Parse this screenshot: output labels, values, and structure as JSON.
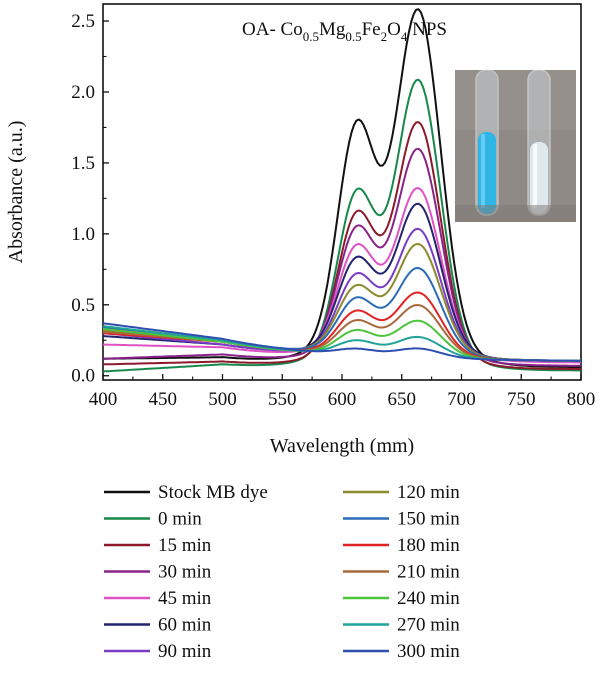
{
  "chart_data": {
    "type": "line",
    "title": {
      "prefix": "OA- Co",
      "co_sub": "0.5",
      "mg": "Mg",
      "mg_sub": "0.5",
      "fe": "Fe",
      "fe_sub": "2",
      "o": "O",
      "o_sub": "4",
      "suffix": " NPS"
    },
    "xlabel": "Wavelength (mm)",
    "ylabel": "Absorbance (a.u.)",
    "xlim": [
      400,
      800
    ],
    "ylim": [
      -0.03,
      2.62
    ],
    "x_ticks": [
      "400",
      "450",
      "500",
      "550",
      "600",
      "650",
      "700",
      "750",
      "800"
    ],
    "y_ticks": [
      "0.0",
      "0.5",
      "1.0",
      "1.5",
      "2.0",
      "2.5"
    ],
    "grid": false,
    "legend_position": "bottom",
    "inset": "photo of two test tubes: blue dye solution (left) and clear treated solution (right)",
    "inset_colors": {
      "background": "#8f8a86",
      "blue_liquid": "#2fb6e6",
      "clear_liquid": "#dfe8ec"
    },
    "series": [
      {
        "name": "Stock MB dye",
        "color": "#111111",
        "base400": 0.12,
        "base500": 0.13,
        "peak": 2.34,
        "shoulder": 1.57
      },
      {
        "name": "0 min",
        "color": "#16884a",
        "base400": 0.03,
        "base500": 0.08,
        "peak": 1.89,
        "shoulder": 1.13
      },
      {
        "name": "15 min",
        "color": "#8b1a2b",
        "base400": 0.08,
        "base500": 0.1,
        "peak": 1.62,
        "shoulder": 1.0
      },
      {
        "name": "30 min",
        "color": "#8a2389",
        "base400": 0.12,
        "base500": 0.15,
        "peak": 1.45,
        "shoulder": 0.91
      },
      {
        "name": "45 min",
        "color": "#e052c4",
        "base400": 0.22,
        "base500": 0.2,
        "peak": 1.2,
        "shoulder": 0.8
      },
      {
        "name": "60 min",
        "color": "#24236e",
        "base400": 0.28,
        "base500": 0.22,
        "peak": 1.1,
        "shoulder": 0.72
      },
      {
        "name": "90 min",
        "color": "#7a3cc4",
        "base400": 0.3,
        "base500": 0.22,
        "peak": 0.94,
        "shoulder": 0.62
      },
      {
        "name": "120 min",
        "color": "#8c8a2c",
        "base400": 0.32,
        "base500": 0.24,
        "peak": 0.85,
        "shoulder": 0.55
      },
      {
        "name": "150 min",
        "color": "#2c6bb5",
        "base400": 0.34,
        "base500": 0.25,
        "peak": 0.7,
        "shoulder": 0.48
      },
      {
        "name": "180 min",
        "color": "#e02424",
        "base400": 0.3,
        "base500": 0.24,
        "peak": 0.54,
        "shoulder": 0.4
      },
      {
        "name": "210 min",
        "color": "#a66a3a",
        "base400": 0.31,
        "base500": 0.24,
        "peak": 0.46,
        "shoulder": 0.34
      },
      {
        "name": "240 min",
        "color": "#4cc43c",
        "base400": 0.33,
        "base500": 0.24,
        "peak": 0.36,
        "shoulder": 0.28
      },
      {
        "name": "270 min",
        "color": "#22a39a",
        "base400": 0.35,
        "base500": 0.25,
        "peak": 0.26,
        "shoulder": 0.22
      },
      {
        "name": "300 min",
        "color": "#2f4fb0",
        "base400": 0.37,
        "base500": 0.26,
        "peak": 0.19,
        "shoulder": 0.17
      }
    ]
  }
}
